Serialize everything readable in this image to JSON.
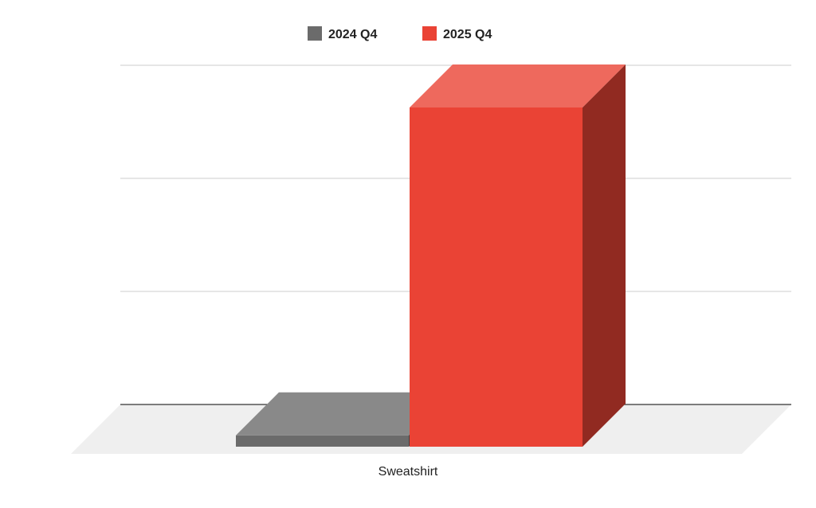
{
  "chart_data": {
    "type": "bar",
    "categories": [
      "Sweatshirt"
    ],
    "series": [
      {
        "name": "2024 Q4",
        "values": [
          0.1
        ],
        "color": "#6b6b6b"
      },
      {
        "name": "2025 Q4",
        "values": [
          3.0
        ],
        "color": "#ea4335"
      }
    ],
    "ylim": [
      0,
      3
    ],
    "grid": true,
    "legend_position": "top-center",
    "style": "3d-bar"
  }
}
